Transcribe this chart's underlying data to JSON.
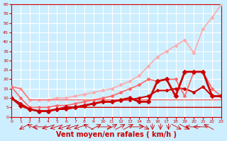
{
  "background_color": "#cceeff",
  "grid_color": "#ffffff",
  "xlabel": "Vent moyen/en rafales ( km/h )",
  "xlabel_color": "#cc0000",
  "xlabel_fontsize": 7,
  "xtick_color": "#cc0000",
  "ytick_color": "#cc0000",
  "xmin": 0,
  "xmax": 23,
  "ymin": 0,
  "ymax": 60,
  "yticks": [
    0,
    5,
    10,
    15,
    20,
    25,
    30,
    35,
    40,
    45,
    50,
    55,
    60
  ],
  "xticks": [
    0,
    1,
    2,
    3,
    4,
    5,
    6,
    7,
    8,
    9,
    10,
    11,
    12,
    13,
    14,
    15,
    16,
    17,
    18,
    19,
    20,
    21,
    22,
    23
  ],
  "lines": [
    {
      "x": [
        0,
        1,
        2,
        3,
        4,
        5,
        6,
        7,
        8,
        9,
        10,
        11,
        12,
        13,
        14,
        15,
        16,
        17,
        18,
        19,
        20,
        21,
        22,
        23
      ],
      "y": [
        16,
        15,
        9,
        9,
        9,
        9,
        9,
        9,
        9,
        9,
        9,
        9,
        9,
        9,
        9,
        9,
        9,
        9,
        9,
        9,
        9,
        9,
        9,
        9
      ],
      "color": "#ffaaaa",
      "lw": 1.0,
      "marker": null
    },
    {
      "x": [
        0,
        1,
        2,
        3,
        4,
        5,
        6,
        7,
        8,
        9,
        10,
        11,
        12,
        13,
        14,
        15,
        16,
        17,
        18,
        19,
        20,
        21,
        22,
        23
      ],
      "y": [
        16,
        15,
        9,
        9,
        9,
        10,
        10,
        11,
        12,
        13,
        14,
        15,
        17,
        19,
        22,
        27,
        32,
        35,
        38,
        41,
        34,
        47,
        53,
        60
      ],
      "color": "#ffaaaa",
      "lw": 1.2,
      "marker": "D",
      "markersize": 2
    },
    {
      "x": [
        0,
        1,
        2,
        3,
        4,
        5,
        6,
        7,
        8,
        9,
        10,
        11,
        12,
        13,
        14,
        15,
        16,
        17,
        18,
        19,
        20,
        21,
        22,
        23
      ],
      "y": [
        10,
        7,
        4,
        3,
        3,
        4,
        4,
        5,
        6,
        7,
        8,
        8,
        9,
        9,
        10,
        11,
        14,
        14,
        15,
        15,
        13,
        16,
        11,
        11
      ],
      "color": "#cc0000",
      "lw": 1.5,
      "marker": "D",
      "markersize": 2
    },
    {
      "x": [
        0,
        1,
        2,
        3,
        4,
        5,
        6,
        7,
        8,
        9,
        10,
        11,
        12,
        13,
        14,
        15,
        16,
        17,
        18,
        19,
        20,
        21,
        22,
        23
      ],
      "y": [
        10,
        7,
        4,
        3,
        3,
        4,
        4,
        5,
        5,
        5,
        5,
        5,
        5,
        5,
        5,
        5,
        5,
        5,
        5,
        5,
        5,
        5,
        5,
        5
      ],
      "color": "#cc0000",
      "lw": 1.0,
      "marker": null
    },
    {
      "x": [
        0,
        1,
        2,
        3,
        4,
        5,
        6,
        7,
        8,
        9,
        10,
        11,
        12,
        13,
        14,
        15,
        16,
        17,
        18,
        19,
        20,
        21,
        22,
        23
      ],
      "y": [
        16,
        15,
        9,
        9,
        9,
        9,
        9,
        9,
        9,
        9,
        9,
        9,
        9,
        9,
        9,
        9,
        9,
        9,
        9,
        9,
        9,
        9,
        9,
        9
      ],
      "color": "#ff6666",
      "lw": 0.8,
      "marker": null
    },
    {
      "x": [
        0,
        1,
        2,
        3,
        4,
        5,
        6,
        7,
        8,
        9,
        10,
        11,
        12,
        13,
        14,
        15,
        16,
        17,
        18,
        19,
        20,
        21,
        22,
        23
      ],
      "y": [
        16,
        10,
        5,
        5,
        5,
        6,
        6,
        7,
        8,
        9,
        10,
        11,
        13,
        15,
        17,
        20,
        19,
        20,
        20,
        11,
        24,
        24,
        15,
        11
      ],
      "color": "#ff6666",
      "lw": 1.2,
      "marker": "D",
      "markersize": 2
    },
    {
      "x": [
        0,
        1,
        2,
        3,
        4,
        5,
        6,
        7,
        8,
        9,
        10,
        11,
        12,
        13,
        14,
        15,
        16,
        17,
        18,
        19,
        20,
        21,
        22,
        23
      ],
      "y": [
        10,
        6,
        4,
        3,
        3,
        4,
        5,
        5,
        6,
        7,
        8,
        8,
        9,
        10,
        8,
        8,
        19,
        20,
        11,
        24,
        24,
        24,
        11,
        11
      ],
      "color": "#cc0000",
      "lw": 2.0,
      "marker": "D",
      "markersize": 3
    }
  ],
  "wind_arrows": [
    {
      "x": 0,
      "dir": 225
    },
    {
      "x": 1,
      "dir": 315
    },
    {
      "x": 2,
      "dir": 270
    },
    {
      "x": 3,
      "dir": 240
    },
    {
      "x": 4,
      "dir": 240
    },
    {
      "x": 5,
      "dir": 240
    },
    {
      "x": 6,
      "dir": 240
    },
    {
      "x": 7,
      "dir": 240
    },
    {
      "x": 8,
      "dir": 315
    },
    {
      "x": 9,
      "dir": 45
    },
    {
      "x": 10,
      "dir": 90
    },
    {
      "x": 11,
      "dir": 45
    },
    {
      "x": 12,
      "dir": 45
    },
    {
      "x": 13,
      "dir": 45
    },
    {
      "x": 14,
      "dir": 90
    },
    {
      "x": 15,
      "dir": 135
    },
    {
      "x": 16,
      "dir": 180
    },
    {
      "x": 17,
      "dir": 180
    },
    {
      "x": 18,
      "dir": 180
    },
    {
      "x": 19,
      "dir": 135
    },
    {
      "x": 20,
      "dir": 135
    },
    {
      "x": 21,
      "dir": 270
    },
    {
      "x": 22,
      "dir": 270
    },
    {
      "x": 23,
      "dir": 315
    }
  ]
}
